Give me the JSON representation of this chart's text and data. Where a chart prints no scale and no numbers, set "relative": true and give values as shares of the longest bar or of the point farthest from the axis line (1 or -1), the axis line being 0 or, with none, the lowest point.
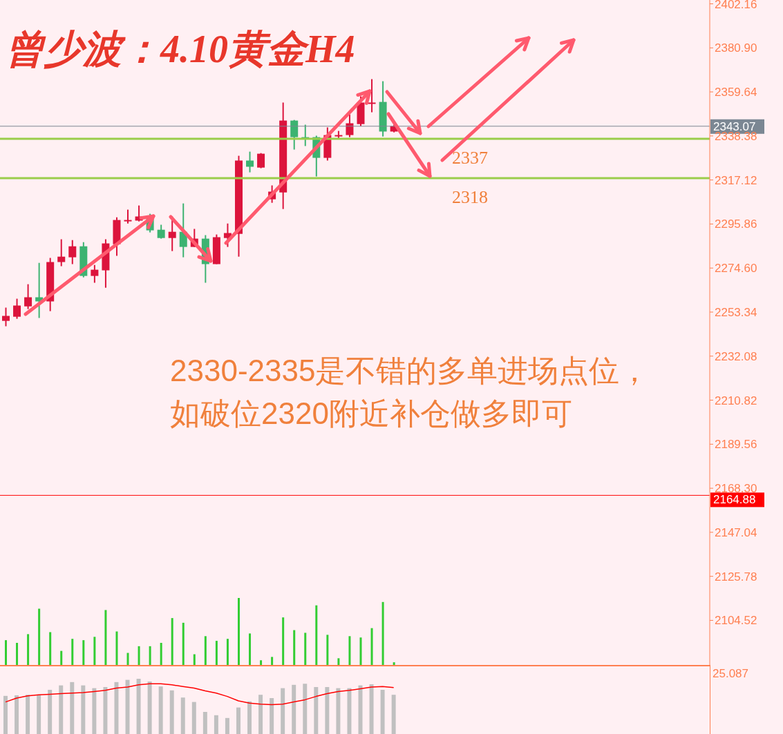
{
  "chart_data": [
    {
      "type": "candlestick",
      "title": "曾少波：4.10黄金H4",
      "annotations": [
        "2330-2335是不错的多单进场点位，如破位2320附近补仓做多即可",
        {
          "text": "2337",
          "y": 2337
        },
        {
          "text": "2318",
          "y": 2318
        }
      ],
      "categories": [
        null,
        null,
        null,
        null,
        null,
        null,
        null,
        null,
        null,
        null,
        null,
        null,
        null,
        null,
        null,
        null,
        null,
        null,
        null,
        null,
        null,
        null,
        null,
        null,
        null,
        null,
        null,
        null,
        null,
        null,
        null,
        null,
        null,
        null,
        null,
        null,
        null,
        null,
        null,
        null,
        null,
        null,
        null,
        null,
        null,
        null,
        null,
        null,
        null,
        null,
        null,
        null,
        null,
        null,
        null,
        null,
        null,
        null,
        null,
        null,
        null,
        null,
        null,
        null
      ],
      "ohlc": [
        [
          2249.1,
          2255.5,
          2246.5,
          2251.5
        ],
        [
          2251.1,
          2259.8,
          2250.1,
          2256.5
        ],
        [
          2256.1,
          2266.8,
          2254.8,
          2260.5
        ],
        [
          2260.5,
          2277.1,
          2250.5,
          2258.5
        ],
        [
          2258.5,
          2279.5,
          2253.8,
          2277.5
        ],
        [
          2277.5,
          2288.5,
          2275.5,
          2280.1
        ],
        [
          2279.8,
          2288.1,
          2276.5,
          2285.1
        ],
        [
          2285.1,
          2287.1,
          2270.1,
          2270.8
        ],
        [
          2270.8,
          2276.1,
          2267.5,
          2273.8
        ],
        [
          2273.5,
          2288.5,
          2265.1,
          2286.5
        ],
        [
          2286.1,
          2299.1,
          2280.5,
          2297.8
        ],
        [
          2297.8,
          2302.8,
          2296.1,
          2297.8
        ],
        [
          2297.5,
          2304.8,
          2297.1,
          2299.5
        ],
        [
          2299.5,
          2300.8,
          2291.8,
          2292.8
        ],
        [
          2293.1,
          2295.5,
          2288.8,
          2289.1
        ],
        [
          2289.1,
          2299.5,
          2282.8,
          2292.1
        ],
        [
          2292.1,
          2305.8,
          2279.8,
          2284.8
        ],
        [
          2284.8,
          2293.5,
          2284.8,
          2288.8
        ],
        [
          2288.8,
          2290.5,
          2267.5,
          2276.5
        ],
        [
          2276.5,
          2290.8,
          2276.5,
          2289.5
        ],
        [
          2289.1,
          2296.1,
          2284.8,
          2291.5
        ],
        [
          2291.1,
          2328.8,
          2280.1,
          2326.5
        ],
        [
          2326.5,
          2330.8,
          2320.8,
          2323.5
        ],
        [
          2323.1,
          2330.1,
          2322.8,
          2329.8
        ],
        [
          2307.8,
          2314.5,
          2306.1,
          2311.5
        ],
        [
          2311.1,
          2354.5,
          2303.1,
          2345.8
        ],
        [
          2345.8,
          2346.1,
          2331.8,
          2337.8
        ],
        [
          2337.8,
          2343.8,
          2333.5,
          2337.8
        ],
        [
          2337.8,
          2338.5,
          2318.8,
          2327.8
        ],
        [
          2327.8,
          2342.5,
          2326.5,
          2338.8
        ],
        [
          2338.8,
          2340.8,
          2336.8,
          2338.8
        ],
        [
          2338.8,
          2348.8,
          2337.8,
          2344.5
        ],
        [
          2344.1,
          2357.5,
          2343.1,
          2354.5
        ],
        [
          2354.5,
          2365.8,
          2349.8,
          2354.5
        ],
        [
          2354.8,
          2364.8,
          2338.1,
          2340.5
        ],
        [
          2340.5,
          2343.8,
          2340.1,
          2343.1
        ],
        null,
        null,
        null,
        null,
        null,
        null,
        null,
        null,
        null,
        null,
        null,
        null,
        null,
        null,
        null,
        null,
        null,
        null,
        null,
        null,
        null,
        null,
        null,
        null,
        null,
        null,
        null,
        null
      ],
      "colors": [
        "#dc143c",
        "#dc143c",
        "#dc143c",
        "#3cb371",
        "#dc143c",
        "#dc143c",
        "#dc143c",
        "#3cb371",
        "#dc143c",
        "#dc143c",
        "#dc143c",
        "#dc143c",
        "#dc143c",
        "#3cb371",
        "#3cb371",
        "#dc143c",
        "#3cb371",
        "#dc143c",
        "#3cb371",
        "#dc143c",
        "#dc143c",
        "#dc143c",
        "#3cb371",
        "#dc143c",
        "#dc143c",
        "#dc143c",
        "#3cb371",
        "#3cb371",
        "#3cb371",
        "#dc143c",
        "#dc143c",
        "#dc143c",
        "#dc143c",
        "#dc143c",
        "#3cb371",
        "#dc143c",
        null,
        null,
        null,
        null,
        null,
        null,
        null,
        null,
        null,
        null,
        null,
        null,
        null,
        null,
        null,
        null,
        null,
        null,
        null,
        null,
        null,
        null,
        null,
        null,
        null,
        null,
        null,
        null
      ],
      "ylim": [
        2083,
        2404
      ],
      "yticks": [
        2402.16,
        {
          "value": 2380.9,
          "label": "2380.90"
        },
        2359.64,
        2338.38,
        2317.12,
        2295.86,
        {
          "value": 2274.6,
          "label": "2274.60"
        },
        2253.34,
        2232.08,
        2210.82,
        2189.56,
        {
          "value": 2168.3,
          "label": "2168.30"
        },
        2147.04,
        2125.78,
        2104.52
      ],
      "ref_lines": [
        {
          "axis": "y",
          "value": 2343.07,
          "label": "2343.07",
          "color": "#7b8793"
        },
        {
          "axis": "y",
          "value": 2164.88,
          "label": "2164.88",
          "color": "#ff0000"
        },
        {
          "axis": "y",
          "value": 2337,
          "color": "#9acd4a"
        },
        {
          "axis": "y",
          "value": 2318,
          "color": "#9acd4a"
        }
      ]
    },
    {
      "type": "bar",
      "relative": true,
      "color": "#32cd32",
      "categories": [
        null,
        null,
        null,
        null,
        null,
        null,
        null,
        null,
        null,
        null,
        null,
        null,
        null,
        null,
        null,
        null,
        null,
        null,
        null,
        null,
        null,
        null,
        null,
        null,
        null,
        null,
        null,
        null,
        null,
        null,
        null,
        null,
        null,
        null,
        null,
        null,
        null,
        null,
        null,
        null,
        null,
        null,
        null,
        null,
        null,
        null,
        null,
        null,
        null,
        null,
        null,
        null,
        null,
        null,
        null,
        null,
        null,
        null,
        null,
        null,
        null,
        null,
        null,
        null
      ],
      "values": [
        0.37,
        0.33,
        0.46,
        0.84,
        0.49,
        0.21,
        0.39,
        0.37,
        0.42,
        0.82,
        0.5,
        0.18,
        0.28,
        0.28,
        0.33,
        0.7,
        0.63,
        0.16,
        0.43,
        0.36,
        0.39,
        1,
        0.47,
        0.07,
        0.12,
        0.71,
        0.52,
        0.48,
        0.89,
        0.45,
        0.1,
        0.43,
        0.41,
        0.55,
        0.94,
        0.04,
        null,
        null,
        null,
        null,
        null,
        null,
        null,
        null,
        null,
        null,
        null,
        null,
        null,
        null,
        null,
        null,
        null,
        null,
        null,
        null,
        null,
        null,
        null,
        null,
        null,
        null,
        null,
        null
      ]
    },
    {
      "type": "bar",
      "relative": true,
      "annotations": [
        "25.087"
      ],
      "categories": [
        null,
        null,
        null,
        null,
        null,
        null,
        null,
        null,
        null,
        null,
        null,
        null,
        null,
        null,
        null,
        null,
        null,
        null,
        null,
        null,
        null,
        null,
        null,
        null,
        null,
        null,
        null,
        null,
        null,
        null,
        null,
        null,
        null,
        null,
        null,
        null,
        null,
        null,
        null,
        null,
        null,
        null,
        null,
        null,
        null,
        null,
        null,
        null,
        null,
        null,
        null,
        null,
        null,
        null,
        null,
        null,
        null,
        null,
        null,
        null,
        null,
        null,
        null,
        null
      ],
      "series": [
        {
          "type": "bar",
          "color": "#c0c0c0",
          "values": [
            0.69,
            0.7,
            0.71,
            0.7,
            0.8,
            0.88,
            0.94,
            0.88,
            0.83,
            0.85,
            0.94,
            0.98,
            1,
            0.95,
            0.86,
            0.79,
            0.66,
            0.58,
            0.4,
            0.34,
            0.29,
            0.48,
            0.59,
            0.71,
            0.65,
            0.83,
            0.89,
            0.91,
            0.85,
            0.85,
            0.83,
            0.83,
            0.88,
            0.9,
            0.8,
            0.71,
            null,
            null,
            null,
            null,
            null,
            null,
            null,
            null,
            null,
            null,
            null,
            null,
            null,
            null,
            null,
            null,
            null,
            null,
            null,
            null,
            null,
            null,
            null,
            null,
            null,
            null,
            null,
            null
          ]
        },
        {
          "type": "line",
          "color": "#ff0000",
          "values": [
            0.58,
            0.65,
            0.69,
            0.71,
            0.72,
            0.73,
            0.74,
            0.75,
            0.77,
            0.79,
            0.83,
            0.85,
            0.89,
            0.91,
            0.91,
            0.89,
            0.86,
            0.83,
            0.78,
            0.74,
            0.68,
            0.6,
            0.56,
            0.54,
            0.53,
            0.54,
            0.58,
            0.62,
            0.68,
            0.73,
            0.77,
            0.79,
            0.82,
            0.85,
            0.86,
            0.84,
            null,
            null,
            null,
            null,
            null,
            null,
            null,
            null,
            null,
            null,
            null,
            null,
            null,
            null,
            null,
            null,
            null,
            null,
            null,
            null,
            null,
            null,
            null,
            null,
            null,
            null,
            null,
            null
          ]
        }
      ],
      "marker": "none"
    }
  ]
}
